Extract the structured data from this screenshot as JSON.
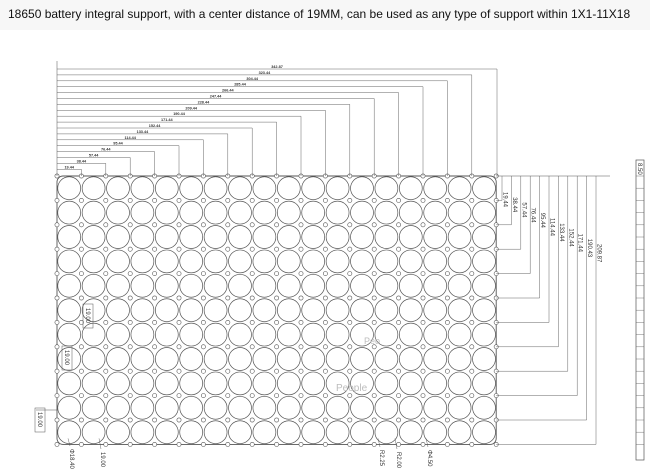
{
  "title": "18650 battery integral support, with a center distance of 19MM, can be used as any type of support within 1X1-11X18",
  "drawing": {
    "grid_columns": 18,
    "grid_rows": 11,
    "top_dimensions": [
      "342.87",
      "323.44",
      "304.44",
      "285.44",
      "266.44",
      "247.44",
      "228.44",
      "209.44",
      "190.44",
      "171.44",
      "152.44",
      "133.44",
      "114.44",
      "95.44",
      "76.44",
      "57.44",
      "38.44",
      "19.44"
    ],
    "right_dimensions": [
      "19.44",
      "38.44",
      "57.44",
      "76.44",
      "95.44",
      "114.44",
      "133.44",
      "152.44",
      "171.44",
      "190.43",
      "209.87"
    ],
    "left_labels": [
      "19.00",
      "19.00",
      "19.00"
    ],
    "bottom_labels": [
      "Φ18.40",
      "19.00",
      "R2.25",
      "R2.00",
      "Φ4.50"
    ],
    "watermarks": [
      "Peo",
      "People"
    ],
    "side_view_label": "8.50",
    "line_color": "#555555",
    "text_color": "#333333"
  }
}
